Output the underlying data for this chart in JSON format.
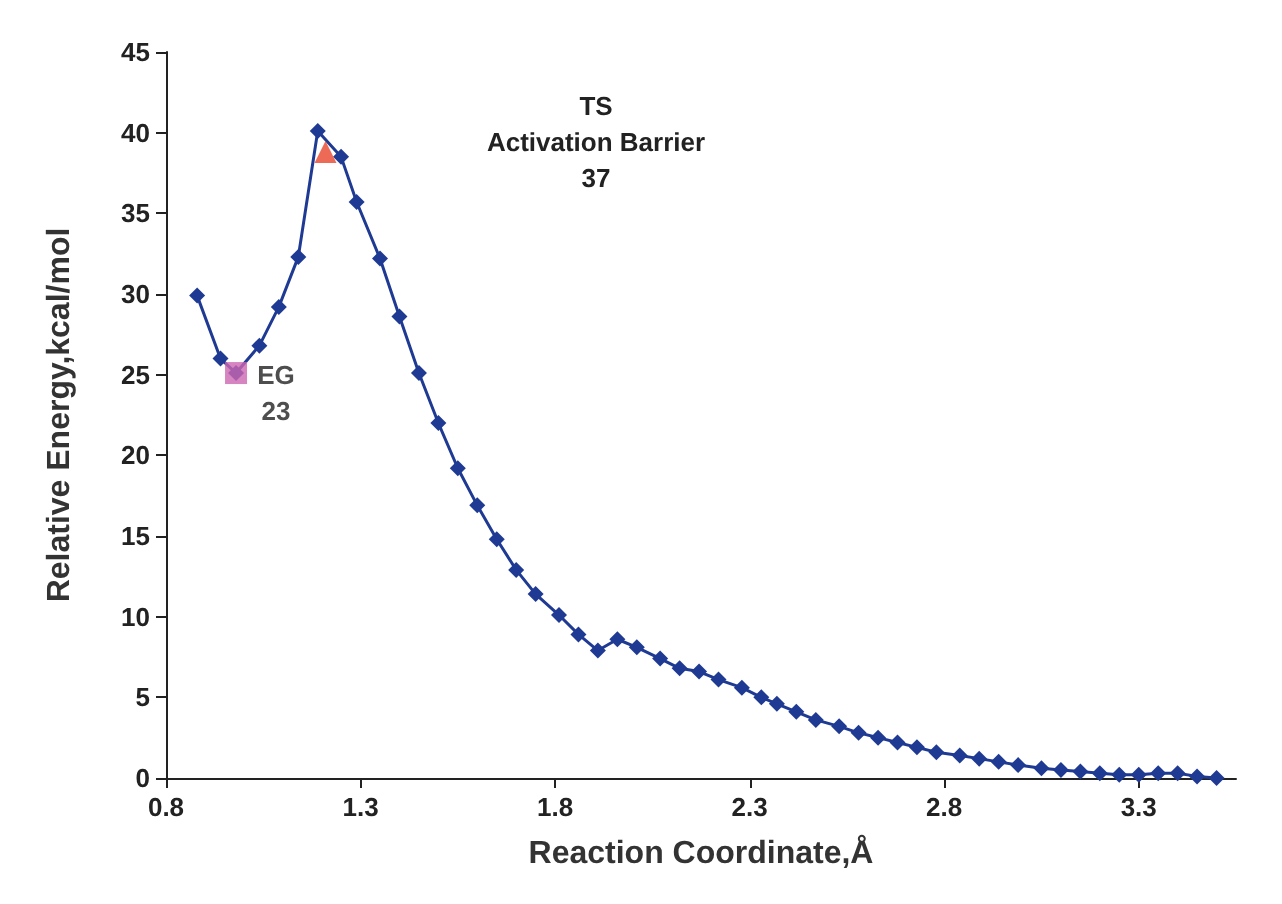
{
  "chart_data": {
    "type": "line",
    "xlabel": "Reaction Coordinate,Å",
    "ylabel": "Relative Energy,kcal/mol",
    "xlim": [
      0.8,
      3.55
    ],
    "xticks": [
      0.8,
      1.3,
      1.8,
      2.3,
      2.8,
      3.3
    ],
    "ylim": [
      0,
      45
    ],
    "yticks": [
      0,
      5,
      10,
      15,
      20,
      25,
      30,
      35,
      40,
      45
    ],
    "grid": false,
    "marker": "diamond",
    "series": [
      {
        "color": "#1f3a93",
        "x": [
          0.88,
          0.94,
          0.98,
          1.04,
          1.09,
          1.14,
          1.19,
          1.25,
          1.29,
          1.35,
          1.4,
          1.45,
          1.5,
          1.55,
          1.6,
          1.65,
          1.7,
          1.75,
          1.81,
          1.86,
          1.91,
          1.96,
          2.01,
          2.07,
          2.12,
          2.17,
          2.22,
          2.28,
          2.33,
          2.37,
          2.42,
          2.47,
          2.53,
          2.58,
          2.63,
          2.68,
          2.73,
          2.78,
          2.84,
          2.89,
          2.94,
          2.99,
          3.05,
          3.1,
          3.15,
          3.2,
          3.25,
          3.3,
          3.35,
          3.4,
          3.45,
          3.5
        ],
        "values": [
          29.9,
          26.0,
          25.1,
          26.8,
          29.2,
          32.3,
          40.1,
          38.5,
          35.7,
          32.2,
          28.6,
          25.1,
          22.0,
          19.2,
          16.9,
          14.8,
          12.9,
          11.4,
          10.1,
          8.9,
          7.9,
          8.6,
          8.1,
          7.4,
          6.8,
          6.6,
          6.1,
          5.6,
          5.0,
          4.6,
          4.1,
          3.6,
          3.2,
          2.8,
          2.5,
          2.2,
          1.9,
          1.6,
          1.4,
          1.2,
          1.0,
          0.8,
          0.6,
          0.5,
          0.4,
          0.3,
          0.2,
          0.2,
          0.3,
          0.3,
          0.1,
          0.0
        ]
      },
      {
        "type": "scatter",
        "marker": "square",
        "color": "#cc66b0",
        "x": [
          0.98
        ],
        "values": [
          25.1
        ]
      },
      {
        "type": "scatter",
        "marker": "triangle",
        "color": "#e8452c",
        "x": [
          1.21
        ],
        "values": [
          38.8
        ]
      }
    ],
    "annotations": [
      {
        "text": "EG\n23",
        "x": 0.98,
        "y": 25.1
      },
      "TS\nActivation Barrier\n37"
    ]
  }
}
